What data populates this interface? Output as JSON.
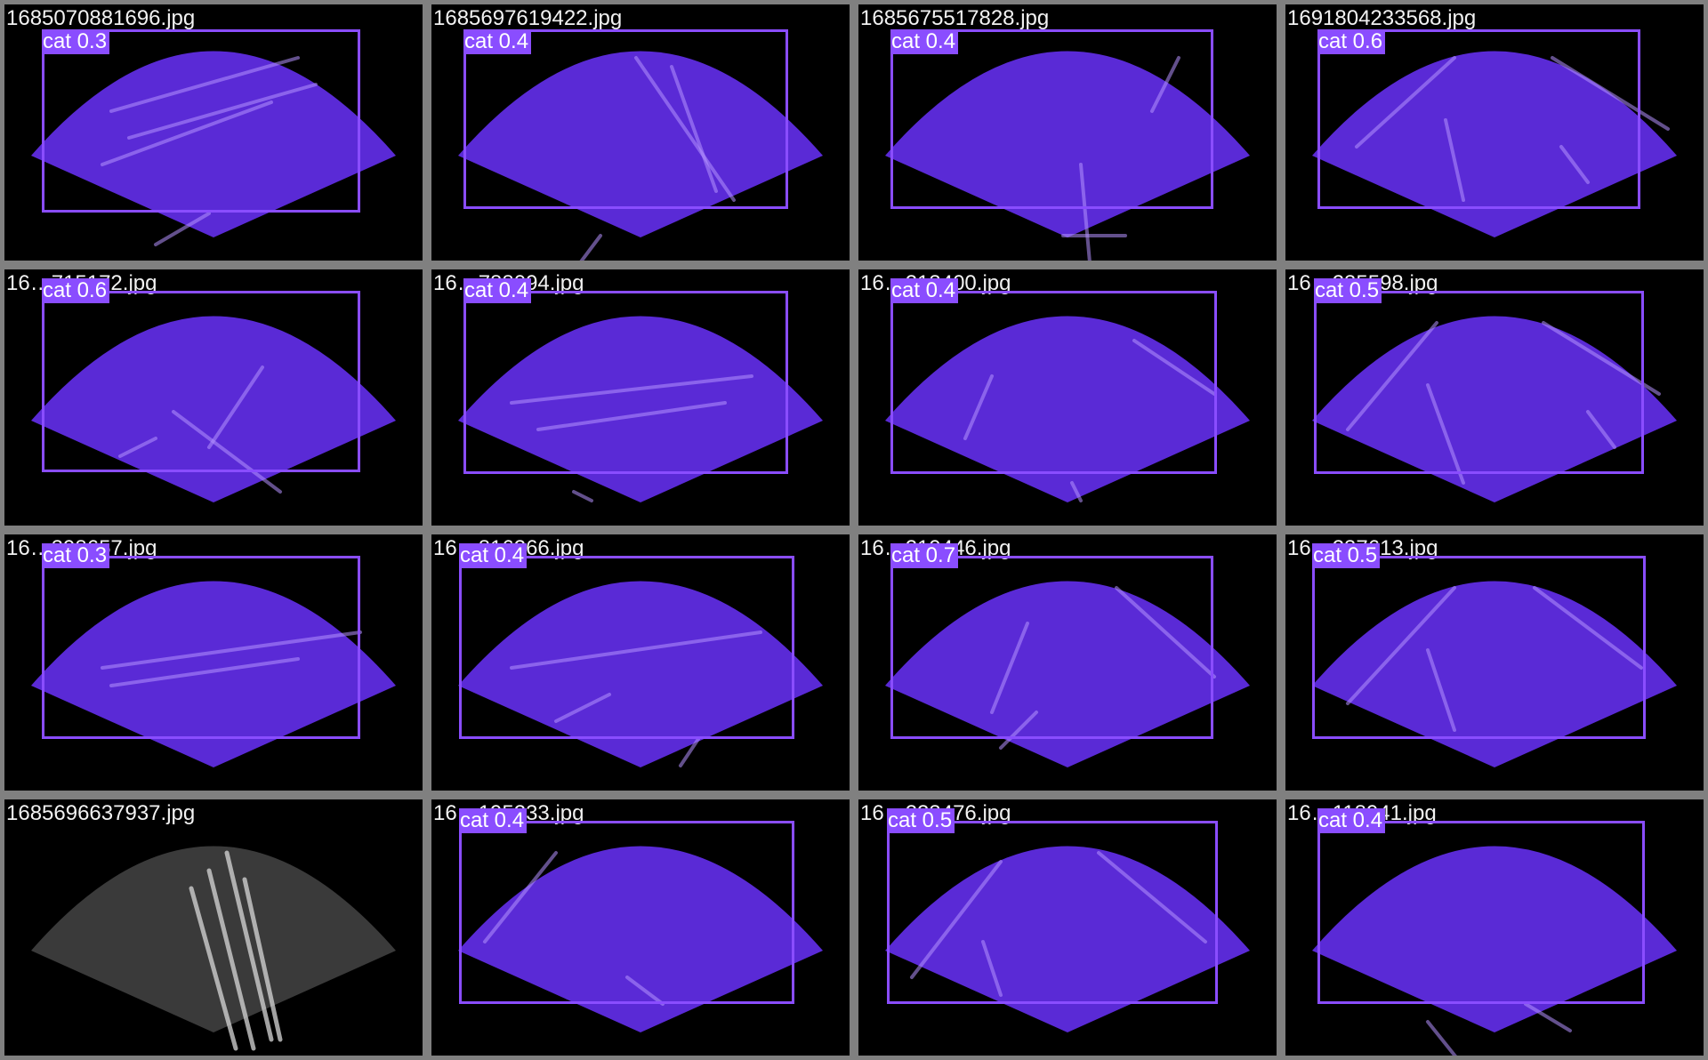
{
  "colors": {
    "border": "#808080",
    "background": "#000000",
    "box": "#8a4dff",
    "overlay": "#5a2ad6",
    "streak": "#b592ff",
    "raw_sonar": "#3a3a3a"
  },
  "tiles": [
    {
      "filename": "1685070881696.jpg",
      "detection": {
        "label": "cat 0.3",
        "class": "cat",
        "confidence": 0.3
      },
      "overlay": true
    },
    {
      "filename": "1685697619422.jpg",
      "detection": {
        "label": "cat 0.4",
        "class": "cat",
        "confidence": 0.4
      },
      "overlay": true
    },
    {
      "filename": "1685675517828.jpg",
      "detection": {
        "label": "cat 0.4",
        "class": "cat",
        "confidence": 0.4
      },
      "overlay": true
    },
    {
      "filename": "1691804233568.jpg",
      "detection": {
        "label": "cat 0.6",
        "class": "cat",
        "confidence": 0.6
      },
      "overlay": true
    },
    {
      "filename": "16…715172.jpg",
      "detection": {
        "label": "cat 0.6",
        "class": "cat",
        "confidence": 0.6
      },
      "overlay": true
    },
    {
      "filename": "16…788094.jpg",
      "detection": {
        "label": "cat 0.4",
        "class": "cat",
        "confidence": 0.4
      },
      "overlay": true
    },
    {
      "filename": "16…213400.jpg",
      "detection": {
        "label": "cat 0.4",
        "class": "cat",
        "confidence": 0.4
      },
      "overlay": true
    },
    {
      "filename": "16…235598.jpg",
      "detection": {
        "label": "cat 0.5",
        "class": "cat",
        "confidence": 0.5
      },
      "overlay": true
    },
    {
      "filename": "16…398657.jpg",
      "detection": {
        "label": "cat 0.3",
        "class": "cat",
        "confidence": 0.3
      },
      "overlay": true
    },
    {
      "filename": "16…816266.jpg",
      "detection": {
        "label": "cat 0.4",
        "class": "cat",
        "confidence": 0.4
      },
      "overlay": true
    },
    {
      "filename": "16…219446.jpg",
      "detection": {
        "label": "cat 0.7",
        "class": "cat",
        "confidence": 0.7
      },
      "overlay": true
    },
    {
      "filename": "16…237613.jpg",
      "detection": {
        "label": "cat 0.5",
        "class": "cat",
        "confidence": 0.5
      },
      "overlay": true
    },
    {
      "filename": "1685696637937.jpg",
      "detection": null,
      "overlay": false
    },
    {
      "filename": "16…195233.jpg",
      "detection": {
        "label": "cat 0.4",
        "class": "cat",
        "confidence": 0.4
      },
      "overlay": true
    },
    {
      "filename": "16…223476.jpg",
      "detection": {
        "label": "cat 0.5",
        "class": "cat",
        "confidence": 0.5
      },
      "overlay": true
    },
    {
      "filename": "16…118941.jpg",
      "detection": {
        "label": "cat 0.4",
        "class": "cat",
        "confidence": 0.4
      },
      "overlay": true
    }
  ]
}
